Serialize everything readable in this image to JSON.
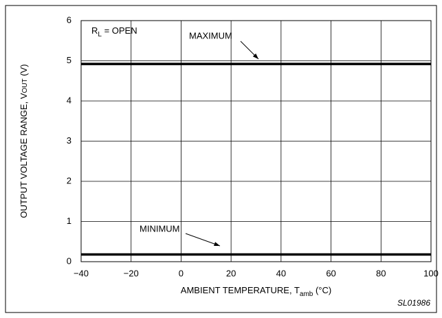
{
  "chart_data": {
    "type": "line",
    "annotation": [
      "R",
      "L",
      " = OPEN"
    ],
    "x_label": [
      "AMBIENT TEMPERATURE, T",
      "amb",
      " (°C)"
    ],
    "y_label": [
      "OUTPUT VOLTAGE RANGE, V",
      "OUT",
      " (V)"
    ],
    "footnote": "SL01986",
    "x": [
      -40,
      100
    ],
    "series": [
      {
        "name": "MAXIMUM",
        "color": "#000000",
        "values": [
          4.92,
          4.92
        ]
      },
      {
        "name": "MINIMUM",
        "color": "#000000",
        "values": [
          0.18,
          0.18
        ]
      }
    ],
    "xlim": [
      -40,
      100
    ],
    "xticks": [
      {
        "value": -40,
        "label": "−40"
      },
      {
        "value": -20,
        "label": "−20"
      },
      0,
      20,
      40,
      60,
      80,
      100
    ],
    "ylim": [
      0,
      6
    ],
    "yticks": [
      0,
      1,
      2,
      3,
      4,
      5,
      6
    ],
    "grid": true
  }
}
